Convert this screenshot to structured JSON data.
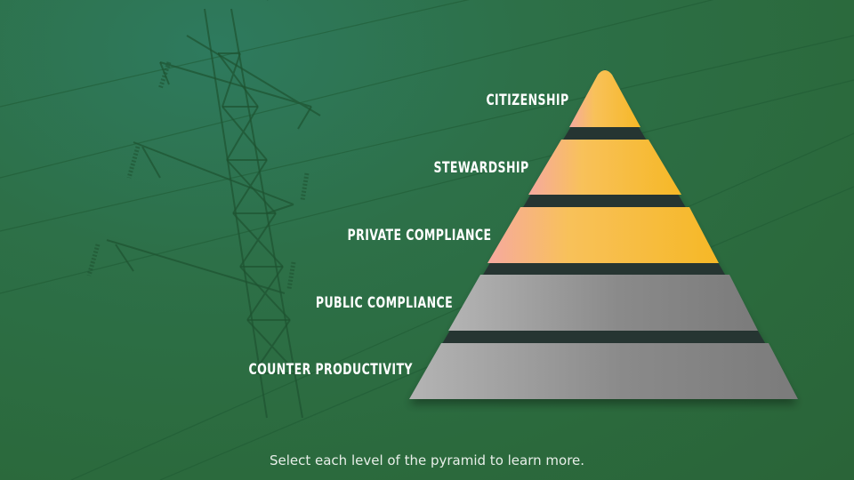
{
  "levels": [
    {
      "label": "CITIZENSHIP",
      "color": "#f4b62a"
    },
    {
      "label": "STEWARDSHIP",
      "color": "#f4b62a"
    },
    {
      "label": "PRIVATE COMPLIANCE",
      "color": "#f4b62a"
    },
    {
      "label": "PUBLIC COMPLIANCE",
      "color": "#8a8a8a"
    },
    {
      "label": "COUNTER PRODUCTIVITY",
      "color": "#8a8a8a"
    }
  ],
  "instruction": "Select each level of the pyramid to learn more.",
  "background": {
    "color": "#2b6a3d",
    "image": "transmission-tower-icon"
  }
}
